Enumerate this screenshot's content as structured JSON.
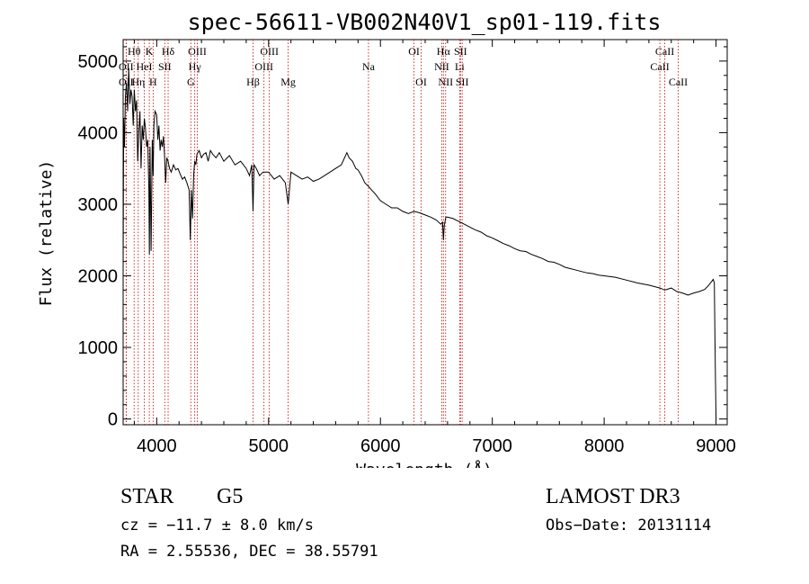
{
  "chart_data": {
    "type": "line",
    "title": "spec-56611-VB002N40V1_sp01-119.fits",
    "xlabel": "Wavelength (Å)",
    "ylabel": "Flux (relative)",
    "xlim": [
      3700,
      9100
    ],
    "ylim": [
      -80,
      5300
    ],
    "xticks": [
      4000,
      5000,
      6000,
      7000,
      8000,
      9000
    ],
    "yticks": [
      0,
      1000,
      2000,
      3000,
      4000,
      5000
    ],
    "x": [
      3700,
      3705,
      3712,
      3720,
      3730,
      3740,
      3750,
      3760,
      3770,
      3780,
      3790,
      3800,
      3810,
      3820,
      3830,
      3840,
      3850,
      3860,
      3870,
      3880,
      3890,
      3900,
      3910,
      3920,
      3930,
      3935,
      3940,
      3950,
      3960,
      3968,
      3975,
      3985,
      4000,
      4010,
      4020,
      4030,
      4040,
      4050,
      4060,
      4070,
      4080,
      4090,
      4102,
      4115,
      4130,
      4150,
      4170,
      4190,
      4210,
      4230,
      4250,
      4270,
      4290,
      4300,
      4310,
      4320,
      4330,
      4340,
      4350,
      4360,
      4380,
      4400,
      4420,
      4440,
      4460,
      4480,
      4500,
      4530,
      4560,
      4600,
      4650,
      4700,
      4750,
      4800,
      4830,
      4850,
      4861,
      4870,
      4890,
      4920,
      4950,
      5000,
      5050,
      5100,
      5150,
      5175,
      5200,
      5250,
      5300,
      5350,
      5400,
      5450,
      5500,
      5550,
      5600,
      5650,
      5700,
      5720,
      5750,
      5780,
      5800,
      5830,
      5860,
      5893,
      5920,
      5950,
      6000,
      6050,
      6100,
      6150,
      6200,
      6250,
      6300,
      6350,
      6400,
      6450,
      6500,
      6540,
      6555,
      6563,
      6570,
      6585,
      6600,
      6650,
      6700,
      6750,
      6800,
      6850,
      6900,
      6950,
      7000,
      7050,
      7100,
      7150,
      7200,
      7250,
      7300,
      7350,
      7400,
      7450,
      7500,
      7550,
      7600,
      7650,
      7700,
      7750,
      7800,
      7850,
      7900,
      7950,
      8000,
      8100,
      8200,
      8300,
      8400,
      8450,
      8500,
      8542,
      8600,
      8650,
      8700,
      8750,
      8800,
      8850,
      8900,
      8930,
      8960,
      8975,
      8985,
      8990,
      8995,
      9000
    ],
    "y": [
      2100,
      4200,
      3800,
      4500,
      4700,
      4300,
      4900,
      4400,
      4600,
      4500,
      4100,
      4600,
      4300,
      4450,
      3600,
      4000,
      4300,
      3500,
      4100,
      3900,
      4200,
      4050,
      3800,
      3900,
      3200,
      2300,
      3800,
      2350,
      3900,
      3400,
      4100,
      4300,
      4250,
      3900,
      4100,
      3750,
      3900,
      3800,
      3950,
      3700,
      3300,
      3650,
      3600,
      3500,
      3450,
      3550,
      3480,
      3500,
      3420,
      3350,
      3380,
      3300,
      3200,
      2500,
      3200,
      2800,
      3400,
      3600,
      3550,
      3700,
      3750,
      3650,
      3700,
      3720,
      3600,
      3750,
      3700,
      3650,
      3720,
      3600,
      3680,
      3550,
      3600,
      3500,
      3400,
      3550,
      2900,
      3550,
      3500,
      3400,
      3450,
      3450,
      3350,
      3400,
      3300,
      3000,
      3450,
      3400,
      3350,
      3380,
      3320,
      3350,
      3400,
      3450,
      3500,
      3550,
      3720,
      3650,
      3600,
      3500,
      3480,
      3400,
      3300,
      3250,
      3200,
      3150,
      3050,
      3000,
      2950,
      2950,
      2900,
      2870,
      2900,
      2880,
      2850,
      2820,
      2780,
      2720,
      2750,
      2500,
      2700,
      2820,
      2820,
      2800,
      2760,
      2720,
      2680,
      2640,
      2610,
      2560,
      2530,
      2490,
      2450,
      2420,
      2380,
      2350,
      2340,
      2300,
      2270,
      2240,
      2200,
      2190,
      2160,
      2120,
      2100,
      2080,
      2060,
      2040,
      2030,
      2010,
      2000,
      1980,
      1940,
      1900,
      1870,
      1850,
      1830,
      1800,
      1830,
      1780,
      1760,
      1730,
      1760,
      1780,
      1810,
      1860,
      1920,
      1950,
      1900,
      1200,
      600,
      0
    ],
    "lines": [
      {
        "label": "Hθ",
        "x": 3798,
        "row": 0
      },
      {
        "label": "OII",
        "x": 3727,
        "row": 1
      },
      {
        "label": "OII",
        "x": 3727,
        "row": 2
      },
      {
        "label": "Hη",
        "x": 3835,
        "row": 2
      },
      {
        "label": "K",
        "x": 3934,
        "row": 0
      },
      {
        "label": "HeI",
        "x": 3889,
        "row": 1
      },
      {
        "label": "H",
        "x": 3968,
        "row": 2
      },
      {
        "label": "SII",
        "x": 4072,
        "row": 1
      },
      {
        "label": "Hδ",
        "x": 4102,
        "row": 0
      },
      {
        "label": "OIII",
        "x": 4363,
        "row": 0
      },
      {
        "label": "Hγ",
        "x": 4340,
        "row": 1
      },
      {
        "label": "G",
        "x": 4305,
        "row": 2
      },
      {
        "label": "Hβ",
        "x": 4861,
        "row": 2
      },
      {
        "label": "OIII",
        "x": 5007,
        "row": 0
      },
      {
        "label": "OIII",
        "x": 4959,
        "row": 1
      },
      {
        "label": "Mg",
        "x": 5175,
        "row": 2
      },
      {
        "label": "Na",
        "x": 5893,
        "row": 1
      },
      {
        "label": "OI",
        "x": 6300,
        "row": 0
      },
      {
        "label": "OI",
        "x": 6364,
        "row": 2
      },
      {
        "label": "Hα",
        "x": 6563,
        "row": 0
      },
      {
        "label": "NII",
        "x": 6548,
        "row": 1
      },
      {
        "label": "NII",
        "x": 6583,
        "row": 2
      },
      {
        "label": "SII",
        "x": 6716,
        "row": 0
      },
      {
        "label": "Li",
        "x": 6708,
        "row": 1
      },
      {
        "label": "SII",
        "x": 6731,
        "row": 2
      },
      {
        "label": "CaII",
        "x": 8542,
        "row": 0
      },
      {
        "label": "CaII",
        "x": 8498,
        "row": 1
      },
      {
        "label": "CaII",
        "x": 8662,
        "row": 2
      }
    ]
  },
  "info": {
    "object_type": "STAR",
    "subclass": "G5",
    "survey": "LAMOST DR3",
    "redshift_text": "cz = −11.7 ± 8.0 km/s",
    "obs_date_text": "Obs−Date: 20131114",
    "coords_text": "RA =   2.55536, DEC =  38.55791"
  }
}
